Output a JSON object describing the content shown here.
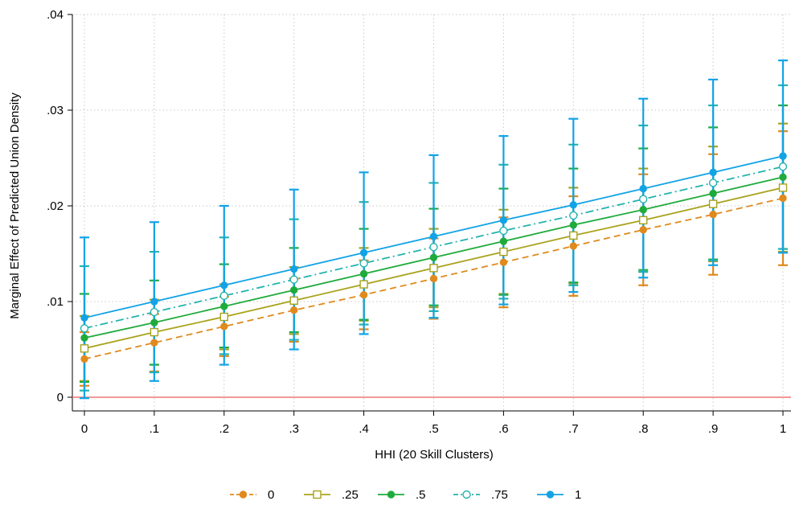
{
  "chart_data": {
    "type": "line",
    "title": "",
    "xlabel": "HHI (20 Skill Clusters)",
    "ylabel": "Marginal Effect of Predicted Union Density",
    "x": [
      0,
      0.1,
      0.2,
      0.3,
      0.4,
      0.5,
      0.6,
      0.7,
      0.8,
      0.9,
      1
    ],
    "x_tick_labels": [
      "0",
      ".1",
      ".2",
      ".3",
      ".4",
      ".5",
      ".6",
      ".7",
      ".8",
      ".9",
      "1"
    ],
    "xlim": [
      0,
      1
    ],
    "y_ticks": [
      0,
      0.01,
      0.02,
      0.03,
      0.04
    ],
    "y_tick_labels": [
      "0",
      ".01",
      ".02",
      ".03",
      ".04"
    ],
    "ylim": [
      -0.0015,
      0.04
    ],
    "grid": true,
    "legend_position": "bottom",
    "reference_line": {
      "y": 0,
      "color": "#ee7777"
    },
    "series": [
      {
        "name": "0",
        "color": "#e08a1e",
        "marker": "filled-circle",
        "dash": "dashed",
        "values": [
          0.004,
          0.0057,
          0.0074,
          0.0091,
          0.0107,
          0.0124,
          0.0141,
          0.0158,
          0.0175,
          0.0191,
          0.0208
        ],
        "lower": [
          0.0012,
          0.0027,
          0.0043,
          0.0058,
          0.0071,
          0.0082,
          0.0094,
          0.0106,
          0.0117,
          0.0128,
          0.0138
        ],
        "upper": [
          0.0068,
          0.0087,
          0.0105,
          0.0124,
          0.0143,
          0.0166,
          0.0188,
          0.021,
          0.0233,
          0.0254,
          0.0278
        ]
      },
      {
        "name": ".25",
        "color": "#a9a21c",
        "marker": "hollow-square",
        "dash": "solid",
        "values": [
          0.0051,
          0.0068,
          0.0084,
          0.0101,
          0.0118,
          0.0135,
          0.0152,
          0.0169,
          0.0185,
          0.0202,
          0.0219
        ],
        "lower": [
          0.0017,
          0.0034,
          0.005,
          0.0066,
          0.008,
          0.0094,
          0.0108,
          0.0119,
          0.0131,
          0.0142,
          0.0152
        ],
        "upper": [
          0.0085,
          0.0102,
          0.0118,
          0.0136,
          0.0156,
          0.0176,
          0.0196,
          0.0219,
          0.0239,
          0.0262,
          0.0286
        ]
      },
      {
        "name": ".5",
        "color": "#1fab3c",
        "marker": "filled-circle",
        "dash": "solid",
        "values": [
          0.0062,
          0.0078,
          0.0095,
          0.0112,
          0.0129,
          0.0146,
          0.0163,
          0.018,
          0.0196,
          0.0213,
          0.023
        ],
        "lower": [
          0.0016,
          0.0034,
          0.0052,
          0.0068,
          0.0081,
          0.0096,
          0.0107,
          0.012,
          0.0133,
          0.0144,
          0.0155
        ],
        "upper": [
          0.0108,
          0.0122,
          0.0139,
          0.0156,
          0.0176,
          0.0197,
          0.0218,
          0.0239,
          0.026,
          0.0282,
          0.0305
        ]
      },
      {
        "name": ".75",
        "color": "#24b3ae",
        "marker": "hollow-circle",
        "dash": "dash-dot",
        "values": [
          0.0072,
          0.0089,
          0.0106,
          0.0123,
          0.014,
          0.0157,
          0.0174,
          0.019,
          0.0207,
          0.0224,
          0.0241
        ],
        "lower": [
          0.0007,
          0.0026,
          0.0045,
          0.006,
          0.0076,
          0.009,
          0.0103,
          0.0117,
          0.0131,
          0.0143,
          0.0155
        ],
        "upper": [
          0.0137,
          0.0152,
          0.0167,
          0.0186,
          0.0204,
          0.0224,
          0.0243,
          0.0264,
          0.0284,
          0.0305,
          0.0326
        ]
      },
      {
        "name": "1",
        "color": "#12a3e6",
        "marker": "filled-circle",
        "dash": "solid",
        "values": [
          0.0083,
          0.01,
          0.0117,
          0.0134,
          0.0151,
          0.0168,
          0.0185,
          0.0201,
          0.0218,
          0.0235,
          0.0252
        ],
        "lower": [
          -0.0001,
          0.0017,
          0.0034,
          0.005,
          0.0066,
          0.0083,
          0.0097,
          0.011,
          0.0125,
          0.0138,
          0.0151
        ],
        "upper": [
          0.0167,
          0.0183,
          0.02,
          0.0217,
          0.0235,
          0.0253,
          0.0273,
          0.0291,
          0.0312,
          0.0332,
          0.0352
        ]
      }
    ]
  }
}
